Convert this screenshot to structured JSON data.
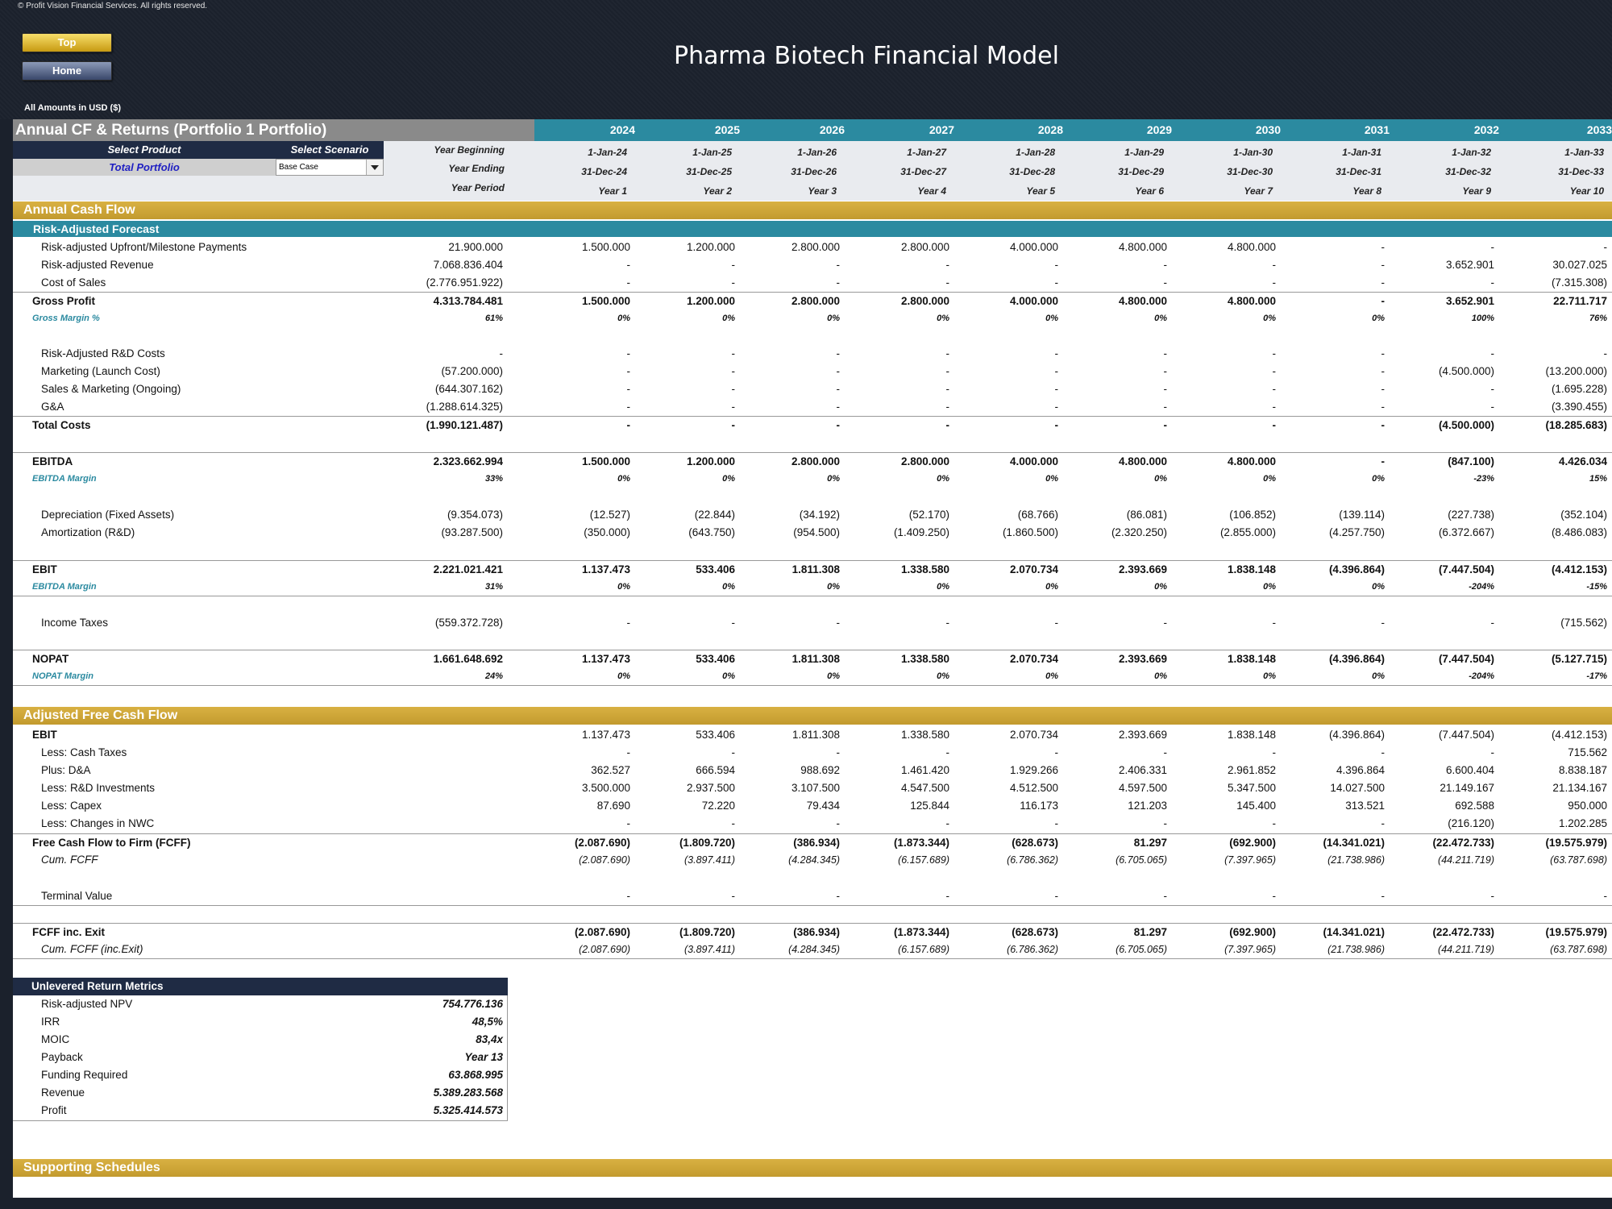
{
  "header": {
    "copyright": "© Profit Vision Financial Services. All rights reserved.",
    "btn_top": "Top",
    "btn_home": "Home",
    "title": "Pharma Biotech Financial Model",
    "amounts": "All Amounts in  USD ($)"
  },
  "sheet": {
    "title": "Annual CF & Returns (Portfolio 1 Portfolio)",
    "years": [
      "2024",
      "2025",
      "2026",
      "2027",
      "2028",
      "2029",
      "2030",
      "2031",
      "2032",
      "2033"
    ],
    "select_product_label": "Select Product",
    "select_scenario_label": "Select Scenario",
    "product_value": "Total Portfolio",
    "scenario_value": "Base Case",
    "year_beginning_label": "Year Beginning",
    "year_ending_label": "Year Ending",
    "year_period_label": "Year Period",
    "year_beginning": [
      "1-Jan-24",
      "1-Jan-25",
      "1-Jan-26",
      "1-Jan-27",
      "1-Jan-28",
      "1-Jan-29",
      "1-Jan-30",
      "1-Jan-31",
      "1-Jan-32",
      "1-Jan-33"
    ],
    "year_ending": [
      "31-Dec-24",
      "31-Dec-25",
      "31-Dec-26",
      "31-Dec-27",
      "31-Dec-28",
      "31-Dec-29",
      "31-Dec-30",
      "31-Dec-31",
      "31-Dec-32",
      "31-Dec-33"
    ],
    "year_period": [
      "Year 1",
      "Year 2",
      "Year 3",
      "Year 4",
      "Year 5",
      "Year 6",
      "Year 7",
      "Year 8",
      "Year 9",
      "Year 10"
    ]
  },
  "sections": {
    "annual_cf": "Annual Cash Flow",
    "risk_adjusted": "Risk-Adjusted Forecast",
    "adjusted_fcf": "Adjusted Free Cash Flow",
    "supporting": "Supporting Schedules"
  },
  "rows": [
    {
      "key": "r_upfront",
      "label": "Risk-adjusted Upfront/Milestone Payments",
      "style": "normal",
      "indent": 1,
      "total": "21.900.000",
      "values": [
        "1.500.000",
        "1.200.000",
        "2.800.000",
        "2.800.000",
        "4.000.000",
        "4.800.000",
        "4.800.000",
        "-",
        "-",
        "-"
      ]
    },
    {
      "key": "r_revenue",
      "label": "Risk-adjusted Revenue",
      "style": "normal",
      "indent": 1,
      "total": "7.068.836.404",
      "values": [
        "-",
        "-",
        "-",
        "-",
        "-",
        "-",
        "-",
        "-",
        "3.652.901",
        "30.027.025"
      ]
    },
    {
      "key": "r_cos",
      "label": "Cost of Sales",
      "style": "normal",
      "indent": 1,
      "total": "(2.776.951.922)",
      "values": [
        "-",
        "-",
        "-",
        "-",
        "-",
        "-",
        "-",
        "-",
        "-",
        "(7.315.308)"
      ]
    },
    {
      "key": "r_gp",
      "label": "Gross Profit",
      "style": "bold",
      "indent": 0,
      "total": "4.313.784.481",
      "values": [
        "1.500.000",
        "1.200.000",
        "2.800.000",
        "2.800.000",
        "4.000.000",
        "4.800.000",
        "4.800.000",
        "-",
        "3.652.901",
        "22.711.717"
      ]
    },
    {
      "key": "r_gm",
      "label": "Gross Margin %",
      "style": "mini",
      "indent": 0,
      "total": "61%",
      "values": [
        "0%",
        "0%",
        "0%",
        "0%",
        "0%",
        "0%",
        "0%",
        "0%",
        "100%",
        "76%"
      ]
    },
    {
      "key": "r_rd",
      "label": "Risk-Adjusted R&D Costs",
      "style": "normal",
      "indent": 1,
      "total": "-",
      "values": [
        "-",
        "-",
        "-",
        "-",
        "-",
        "-",
        "-",
        "-",
        "-",
        "-"
      ]
    },
    {
      "key": "r_mkt",
      "label": "Marketing (Launch Cost)",
      "style": "normal",
      "indent": 1,
      "total": "(57.200.000)",
      "values": [
        "-",
        "-",
        "-",
        "-",
        "-",
        "-",
        "-",
        "-",
        "(4.500.000)",
        "(13.200.000)"
      ]
    },
    {
      "key": "r_sm",
      "label": "Sales & Marketing (Ongoing)",
      "style": "normal",
      "indent": 1,
      "total": "(644.307.162)",
      "values": [
        "-",
        "-",
        "-",
        "-",
        "-",
        "-",
        "-",
        "-",
        "-",
        "(1.695.228)"
      ]
    },
    {
      "key": "r_ga",
      "label": "G&A",
      "style": "normal",
      "indent": 1,
      "total": "(1.288.614.325)",
      "values": [
        "-",
        "-",
        "-",
        "-",
        "-",
        "-",
        "-",
        "-",
        "-",
        "(3.390.455)"
      ]
    },
    {
      "key": "r_tc",
      "label": "Total Costs",
      "style": "bold",
      "indent": 0,
      "total": "(1.990.121.487)",
      "values": [
        "-",
        "-",
        "-",
        "-",
        "-",
        "-",
        "-",
        "-",
        "(4.500.000)",
        "(18.285.683)"
      ]
    },
    {
      "key": "r_ebitda",
      "label": "EBITDA",
      "style": "bold",
      "indent": 0,
      "total": "2.323.662.994",
      "values": [
        "1.500.000",
        "1.200.000",
        "2.800.000",
        "2.800.000",
        "4.000.000",
        "4.800.000",
        "4.800.000",
        "-",
        "(847.100)",
        "4.426.034"
      ]
    },
    {
      "key": "r_ebitdam",
      "label": "EBITDA Margin",
      "style": "mini",
      "indent": 0,
      "total": "33%",
      "values": [
        "0%",
        "0%",
        "0%",
        "0%",
        "0%",
        "0%",
        "0%",
        "0%",
        "-23%",
        "15%"
      ]
    },
    {
      "key": "r_dep",
      "label": "Depreciation (Fixed Assets)",
      "style": "normal",
      "indent": 1,
      "total": "(9.354.073)",
      "values": [
        "(12.527)",
        "(22.844)",
        "(34.192)",
        "(52.170)",
        "(68.766)",
        "(86.081)",
        "(106.852)",
        "(139.114)",
        "(227.738)",
        "(352.104)"
      ]
    },
    {
      "key": "r_amort",
      "label": "Amortization (R&D)",
      "style": "normal",
      "indent": 1,
      "total": "(93.287.500)",
      "values": [
        "(350.000)",
        "(643.750)",
        "(954.500)",
        "(1.409.250)",
        "(1.860.500)",
        "(2.320.250)",
        "(2.855.000)",
        "(4.257.750)",
        "(6.372.667)",
        "(8.486.083)"
      ]
    },
    {
      "key": "r_ebit",
      "label": "EBIT",
      "style": "bold",
      "indent": 0,
      "total": "2.221.021.421",
      "values": [
        "1.137.473",
        "533.406",
        "1.811.308",
        "1.338.580",
        "2.070.734",
        "2.393.669",
        "1.838.148",
        "(4.396.864)",
        "(7.447.504)",
        "(4.412.153)"
      ]
    },
    {
      "key": "r_ebitm",
      "label": "EBITDA Margin",
      "style": "mini",
      "indent": 0,
      "total": "31%",
      "values": [
        "0%",
        "0%",
        "0%",
        "0%",
        "0%",
        "0%",
        "0%",
        "0%",
        "-204%",
        "-15%"
      ]
    },
    {
      "key": "r_tax",
      "label": "Income Taxes",
      "style": "normal",
      "indent": 1,
      "total": "(559.372.728)",
      "values": [
        "-",
        "-",
        "-",
        "-",
        "-",
        "-",
        "-",
        "-",
        "-",
        "(715.562)"
      ]
    },
    {
      "key": "r_nopat",
      "label": "NOPAT",
      "style": "bold",
      "indent": 0,
      "total": "1.661.648.692",
      "values": [
        "1.137.473",
        "533.406",
        "1.811.308",
        "1.338.580",
        "2.070.734",
        "2.393.669",
        "1.838.148",
        "(4.396.864)",
        "(7.447.504)",
        "(5.127.715)"
      ]
    },
    {
      "key": "r_nopatm",
      "label": "NOPAT Margin",
      "style": "mini",
      "indent": 0,
      "total": "24%",
      "values": [
        "0%",
        "0%",
        "0%",
        "0%",
        "0%",
        "0%",
        "0%",
        "0%",
        "-204%",
        "-17%"
      ]
    },
    {
      "key": "f_ebit",
      "label": "EBIT",
      "style": "bold-label",
      "indent": 0,
      "total": "",
      "values": [
        "1.137.473",
        "533.406",
        "1.811.308",
        "1.338.580",
        "2.070.734",
        "2.393.669",
        "1.838.148",
        "(4.396.864)",
        "(7.447.504)",
        "(4.412.153)"
      ]
    },
    {
      "key": "f_tax",
      "label": "Less: Cash Taxes",
      "style": "normal",
      "indent": 1,
      "total": "",
      "values": [
        "-",
        "-",
        "-",
        "-",
        "-",
        "-",
        "-",
        "-",
        "-",
        "715.562"
      ]
    },
    {
      "key": "f_da",
      "label": "Plus: D&A",
      "style": "normal",
      "indent": 1,
      "total": "",
      "values": [
        "362.527",
        "666.594",
        "988.692",
        "1.461.420",
        "1.929.266",
        "2.406.331",
        "2.961.852",
        "4.396.864",
        "6.600.404",
        "8.838.187"
      ]
    },
    {
      "key": "f_rd",
      "label": "Less: R&D Investments",
      "style": "normal",
      "indent": 1,
      "total": "",
      "values": [
        "3.500.000",
        "2.937.500",
        "3.107.500",
        "4.547.500",
        "4.512.500",
        "4.597.500",
        "5.347.500",
        "14.027.500",
        "21.149.167",
        "21.134.167"
      ]
    },
    {
      "key": "f_capex",
      "label": "Less: Capex",
      "style": "normal",
      "indent": 1,
      "total": "",
      "values": [
        "87.690",
        "72.220",
        "79.434",
        "125.844",
        "116.173",
        "121.203",
        "145.400",
        "313.521",
        "692.588",
        "950.000"
      ]
    },
    {
      "key": "f_nwc",
      "label": "Less: Changes in NWC",
      "style": "normal",
      "indent": 1,
      "total": "",
      "values": [
        "-",
        "-",
        "-",
        "-",
        "-",
        "-",
        "-",
        "-",
        "(216.120)",
        "1.202.285"
      ]
    },
    {
      "key": "f_fcff",
      "label": "Free Cash Flow to Firm (FCFF)",
      "style": "bold",
      "indent": 0,
      "total": "",
      "values": [
        "(2.087.690)",
        "(1.809.720)",
        "(386.934)",
        "(1.873.344)",
        "(628.673)",
        "81.297",
        "(692.900)",
        "(14.341.021)",
        "(22.472.733)",
        "(19.575.979)"
      ]
    },
    {
      "key": "f_cum",
      "label": "Cum. FCFF",
      "style": "ital",
      "indent": 1,
      "total": "",
      "values": [
        "(2.087.690)",
        "(3.897.411)",
        "(4.284.345)",
        "(6.157.689)",
        "(6.786.362)",
        "(6.705.065)",
        "(7.397.965)",
        "(21.738.986)",
        "(44.211.719)",
        "(63.787.698)"
      ]
    },
    {
      "key": "f_tv",
      "label": "Terminal Value",
      "style": "normal",
      "indent": 1,
      "total": "",
      "values": [
        "-",
        "-",
        "-",
        "-",
        "-",
        "-",
        "-",
        "-",
        "-",
        "-"
      ]
    },
    {
      "key": "f_exit",
      "label": "FCFF inc. Exit",
      "style": "bold",
      "indent": 0,
      "total": "",
      "values": [
        "(2.087.690)",
        "(1.809.720)",
        "(386.934)",
        "(1.873.344)",
        "(628.673)",
        "81.297",
        "(692.900)",
        "(14.341.021)",
        "(22.472.733)",
        "(19.575.979)"
      ]
    },
    {
      "key": "f_cumexit",
      "label": "Cum. FCFF (inc.Exit)",
      "style": "ital",
      "indent": 1,
      "total": "",
      "values": [
        "(2.087.690)",
        "(3.897.411)",
        "(4.284.345)",
        "(6.157.689)",
        "(6.786.362)",
        "(6.705.065)",
        "(7.397.965)",
        "(21.738.986)",
        "(44.211.719)",
        "(63.787.698)"
      ]
    }
  ],
  "metrics": {
    "title": "Unlevered Return Metrics",
    "items": [
      {
        "label": "Risk-adjusted NPV",
        "value": "754.776.136"
      },
      {
        "label": "IRR",
        "value": "48,5%"
      },
      {
        "label": "MOIC",
        "value": "83,4x"
      },
      {
        "label": "Payback",
        "value": "Year 13"
      },
      {
        "label": "Funding Required",
        "value": "63.868.995"
      },
      {
        "label": "Revenue",
        "value": "5.389.283.568"
      },
      {
        "label": "Profit",
        "value": "5.325.414.573"
      }
    ]
  },
  "colors": {
    "header_bg": "#1b212c",
    "teal": "#2b8aa0",
    "gold": "#c9a233",
    "navy": "#1f2b44"
  }
}
